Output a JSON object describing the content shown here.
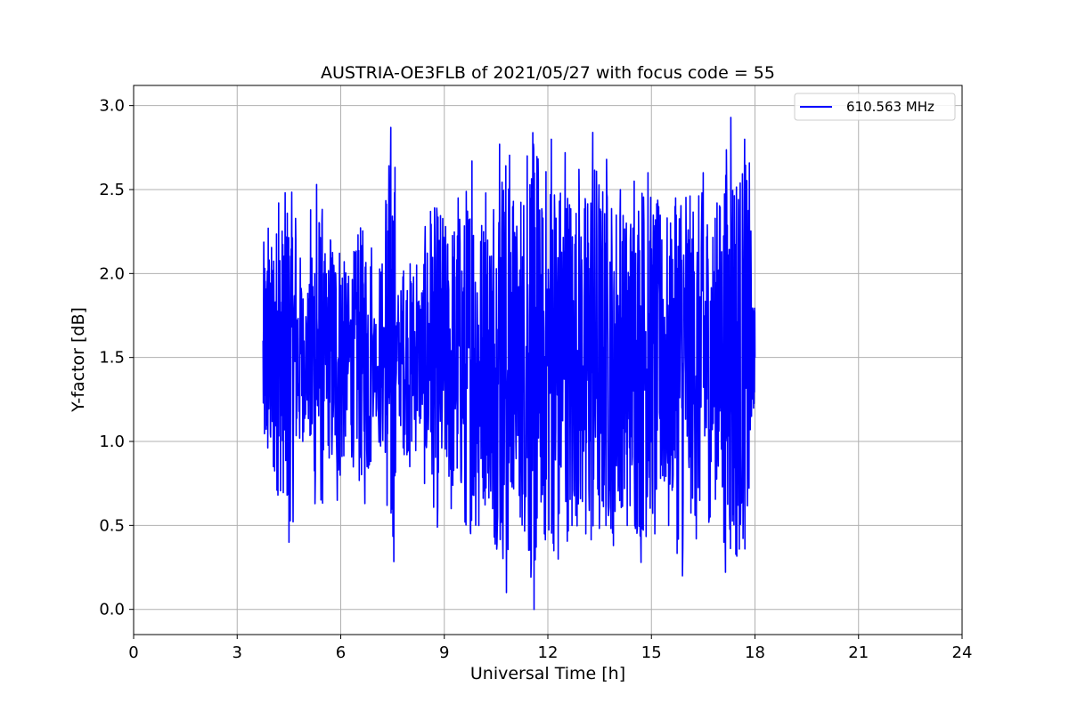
{
  "chart_data": {
    "type": "line",
    "title": "AUSTRIA-OE3FLB of 2021/05/27 with focus code = 55",
    "xlabel": "Universal Time [h]",
    "ylabel": "Y-factor [dB]",
    "xlim": [
      0,
      24
    ],
    "ylim": [
      -0.15,
      3.12
    ],
    "xticks": [
      0,
      3,
      6,
      9,
      12,
      15,
      18,
      21,
      24
    ],
    "xtick_labels": [
      "0",
      "3",
      "6",
      "9",
      "12",
      "15",
      "18",
      "21",
      "24"
    ],
    "yticks": [
      0.0,
      0.5,
      1.0,
      1.5,
      2.0,
      2.5,
      3.0
    ],
    "ytick_labels": [
      "0.0",
      "0.5",
      "1.0",
      "1.5",
      "2.0",
      "2.5",
      "3.0"
    ],
    "grid": true,
    "legend_position": "top-right",
    "series": [
      {
        "name": "610.563 MHz",
        "color": "#0000ff",
        "x_range": [
          3.75,
          18.0
        ],
        "y_min": 0.0,
        "y_max": 2.97,
        "x": [
          3.75,
          3.9,
          4.05,
          4.2,
          4.35,
          4.5,
          4.7,
          4.9,
          5.1,
          5.3,
          5.5,
          5.7,
          5.9,
          6.1,
          6.3,
          6.5,
          6.7,
          6.9,
          7.1,
          7.3,
          7.45,
          7.6,
          7.8,
          8.0,
          8.2,
          8.4,
          8.6,
          8.8,
          9.0,
          9.2,
          9.4,
          9.6,
          9.8,
          10.0,
          10.2,
          10.4,
          10.6,
          10.8,
          11.0,
          11.2,
          11.4,
          11.6,
          11.75,
          11.9,
          12.1,
          12.3,
          12.5,
          12.7,
          12.9,
          13.1,
          13.3,
          13.5,
          13.7,
          13.9,
          14.1,
          14.3,
          14.5,
          14.7,
          14.9,
          15.1,
          15.3,
          15.5,
          15.7,
          15.9,
          16.1,
          16.3,
          16.5,
          16.7,
          16.9,
          17.1,
          17.3,
          17.5,
          17.7,
          17.9,
          18.0
        ],
        "y": [
          1.6,
          2.27,
          0.85,
          2.42,
          1.2,
          0.4,
          2.2,
          1.0,
          1.9,
          2.53,
          0.95,
          2.2,
          0.65,
          2.07,
          1.1,
          2.23,
          0.63,
          1.75,
          1.1,
          2.17,
          2.87,
          1.35,
          1.98,
          0.85,
          2.05,
          1.6,
          2.37,
          0.49,
          2.17,
          0.6,
          2.45,
          0.52,
          2.67,
          0.5,
          2.48,
          0.6,
          2.77,
          0.1,
          2.43,
          0.55,
          2.7,
          0.0,
          2.3,
          0.45,
          2.8,
          0.3,
          2.72,
          0.5,
          2.62,
          0.45,
          2.84,
          0.6,
          2.68,
          0.38,
          2.5,
          0.5,
          2.55,
          0.28,
          2.6,
          0.45,
          2.2,
          0.5,
          2.45,
          0.2,
          2.2,
          0.42,
          2.6,
          0.55,
          2.42,
          0.4,
          2.93,
          0.62,
          2.8,
          1.15,
          1.5
        ]
      }
    ]
  }
}
